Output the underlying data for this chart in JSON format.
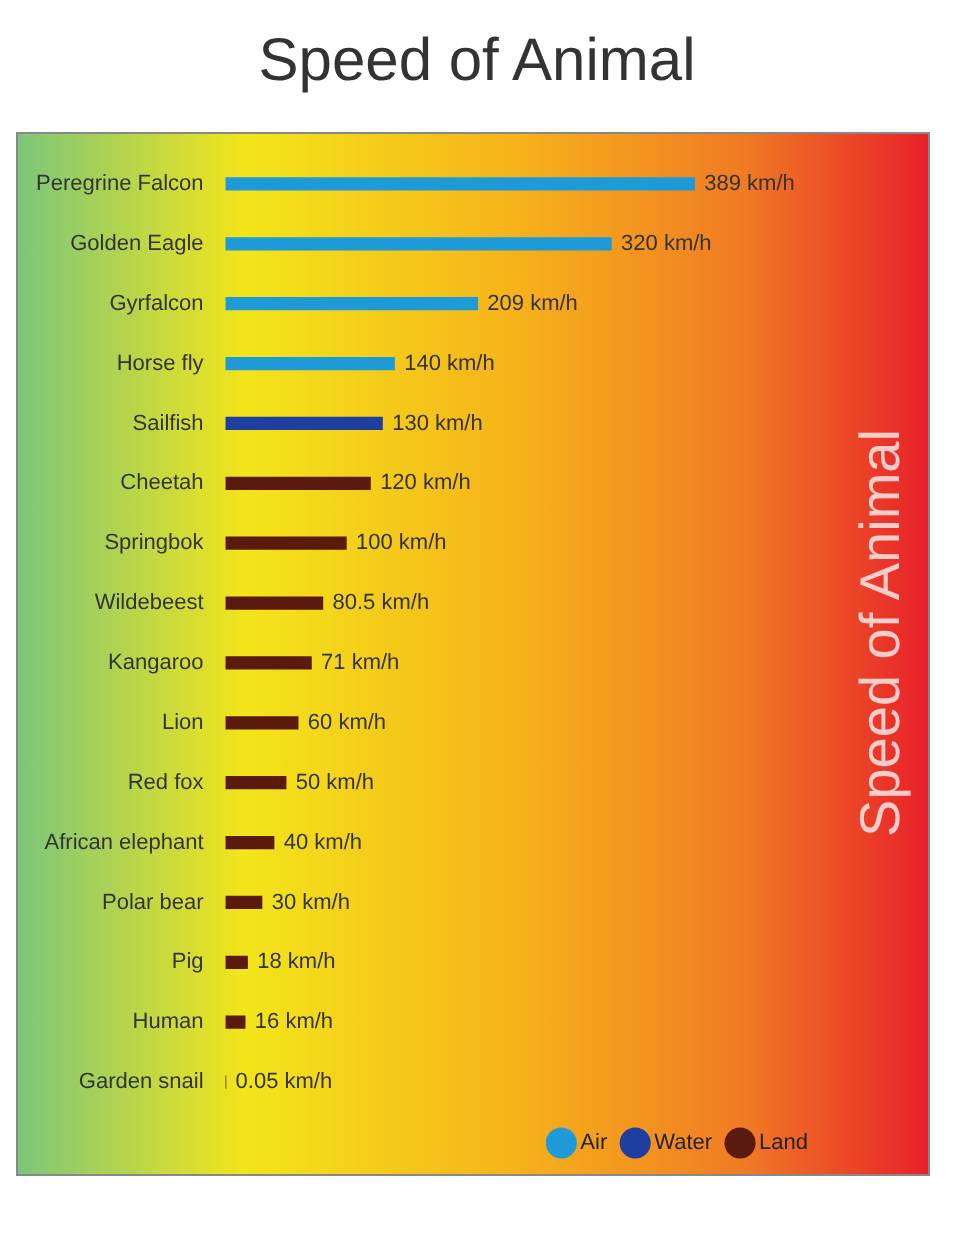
{
  "chart_data": {
    "type": "bar",
    "title": "Speed of Animal",
    "orientation": "horizontal",
    "categories": [
      "Peregrine Falcon",
      "Golden Eagle",
      "Gyrfalcon",
      "Horse fly",
      "Sailfish",
      "Cheetah",
      "Springbok",
      "Wildebeest",
      "Kangaroo",
      "Lion",
      "Red fox",
      "African elephant",
      "Polar bear",
      "Pig",
      "Human",
      "Garden snail"
    ],
    "series": [
      {
        "name": "Air",
        "color": "#1e9ad6",
        "values": [
          389,
          320,
          209,
          140,
          null,
          null,
          null,
          null,
          null,
          null,
          null,
          null,
          null,
          null,
          null,
          null
        ],
        "value_labels": [
          "389 km/h",
          "320 km/h",
          "209 km/h",
          "140 km/h",
          null,
          null,
          null,
          null,
          null,
          null,
          null,
          null,
          null,
          null,
          null,
          null
        ]
      },
      {
        "name": "Water",
        "color": "#1f3fa0",
        "values": [
          null,
          null,
          null,
          null,
          130,
          null,
          null,
          null,
          null,
          null,
          null,
          null,
          null,
          null,
          null,
          null
        ],
        "value_labels": [
          null,
          null,
          null,
          null,
          "130 km/h",
          null,
          null,
          null,
          null,
          null,
          null,
          null,
          null,
          null,
          null,
          null
        ]
      },
      {
        "name": "Land",
        "color": "#5a1a0e",
        "values": [
          null,
          null,
          null,
          null,
          null,
          120,
          100,
          80.5,
          71,
          60,
          50,
          40,
          30,
          18,
          16,
          0.05
        ],
        "value_labels": [
          null,
          null,
          null,
          null,
          null,
          "120 km/h",
          "100 km/h",
          "80.5 km/h",
          "71 km/h",
          "60 km/h",
          "50 km/h",
          "40 km/h",
          "30 km/h",
          "18 km/h",
          "16 km/h",
          "0.05 km/h"
        ]
      }
    ],
    "annotations": [
      "Speed of Animal"
    ],
    "legend": "bottom right",
    "grid": false,
    "tick_labels": "y"
  }
}
